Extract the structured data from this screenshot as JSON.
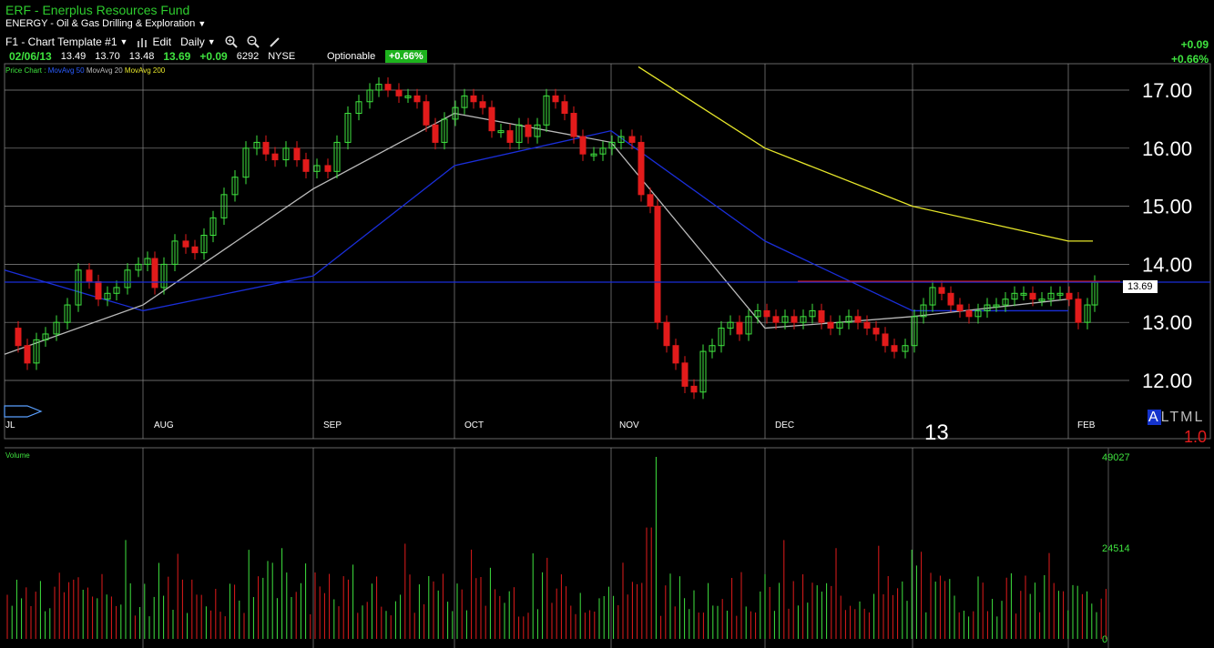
{
  "header": {
    "symbol_title": "ERF - Enerplus Resources Fund",
    "sector": "ENERGY - Oil & Gas Drilling & Exploration"
  },
  "toolbar": {
    "template": "F1 - Chart Template #1",
    "edit": "Edit",
    "interval": "Daily"
  },
  "quote": {
    "date": "02/06/13",
    "open": "13.49",
    "high": "13.70",
    "low": "13.48",
    "last": "13.69",
    "change": "+0.09",
    "volume": "6292",
    "exchange": "NYSE",
    "optionable": "Optionable",
    "pct_change": "+0.66%"
  },
  "top_right": {
    "change": "+0.09",
    "pct": "+0.66%"
  },
  "legend": {
    "price": "Price Chart :",
    "ma50": "MovAvg 50",
    "ma20": "MovAvg 20",
    "ma200": "MovAvg 200"
  },
  "colors": {
    "up": "#3fe33f",
    "down": "#e21b1b",
    "ma50": "#1a2ed8",
    "ma20": "#b9b9b9",
    "ma200": "#e6e62a",
    "grid": "#8a8a8a"
  },
  "price_axis": {
    "labels": [
      "17.00",
      "16.00",
      "15.00",
      "14.00",
      "13.00",
      "12.00"
    ],
    "values": [
      17,
      16,
      15,
      14,
      13,
      12
    ]
  },
  "month_labels": [
    "JL",
    "AUG",
    "SEP",
    "OCT",
    "NOV",
    "DEC",
    "FEB"
  ],
  "year_label": "13",
  "current_price_tag": "13.69",
  "altml": {
    "a": "A",
    "rest": "LTML"
  },
  "red_value": "1.0",
  "volume": {
    "label": "Volume",
    "axis_labels": [
      "49027",
      "24514",
      "0"
    ],
    "axis_values": [
      49027,
      24514,
      0
    ]
  },
  "chart_data": {
    "type": "line",
    "title": "",
    "xlabel": "",
    "ylabel": "",
    "ylim": [
      11.5,
      17.4
    ],
    "x": [
      "JL",
      "AUG",
      "SEP",
      "OCT",
      "NOV",
      "DEC",
      "13",
      "FEB"
    ],
    "series": [
      {
        "name": "MovAvg 50",
        "values": [
          13.9,
          13.2,
          13.8,
          15.7,
          16.3,
          14.4,
          13.2,
          13.2
        ]
      },
      {
        "name": "MovAvg 20",
        "values": [
          12.45,
          13.3,
          15.3,
          16.6,
          16.1,
          12.9,
          13.1,
          13.4
        ]
      },
      {
        "name": "MovAvg 200",
        "values": [
          null,
          null,
          null,
          null,
          17.4,
          16.0,
          15.0,
          14.4
        ]
      }
    ],
    "legend": "top-left",
    "grid": true
  }
}
